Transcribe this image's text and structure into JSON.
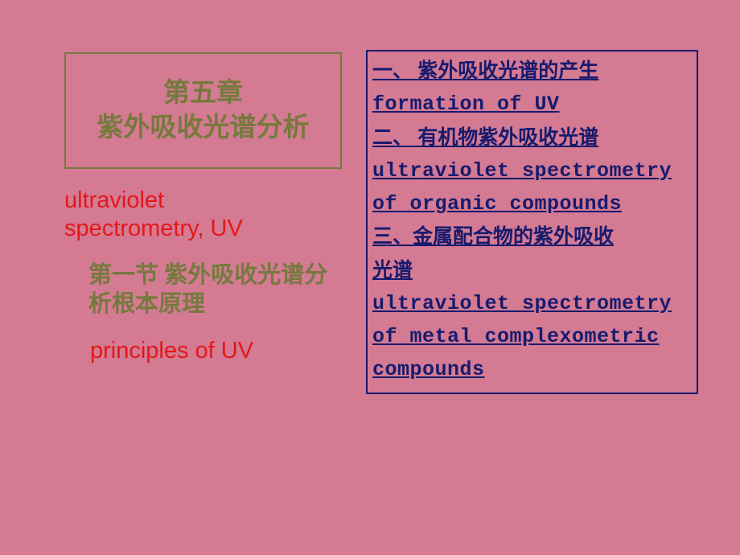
{
  "left": {
    "chapter_title": "第五章\n紫外吸收光谱分析",
    "subtitle_en": "ultraviolet\nspectrometry,  UV",
    "section_cn": "第一节  紫外吸收光谱分析根本原理",
    "section_en": "principles of UV"
  },
  "toc": {
    "item1_cn": "一、 紫外吸收光谱的产生",
    "item1_en": "formation of UV",
    "item2_cn": "二、 有机物紫外吸收光谱",
    "item2_en1": "ultraviolet spectrometry",
    "item2_en2": "of organic compounds",
    "item3_cn1": "三、金属配合物的紫外吸收",
    "item3_cn2": "光谱",
    "item3_en1": "ultraviolet spectrometry",
    "item3_en2": "of metal complexometric",
    "item3_en3": "compounds"
  },
  "colors": {
    "background": "#d47a93",
    "olive": "#757a3c",
    "red": "#e31818",
    "navy": "#171b6e"
  }
}
